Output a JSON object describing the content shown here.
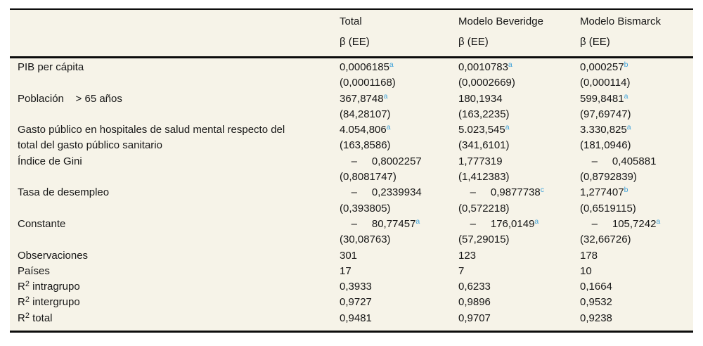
{
  "table": {
    "columns": [
      {
        "title": "Total",
        "subtitle": "β (EE)"
      },
      {
        "title": "Modelo Beveridge",
        "subtitle": "β (EE)"
      },
      {
        "title": "Modelo Bismarck",
        "subtitle": "β (EE)"
      }
    ],
    "vars": [
      {
        "label": "PIB per cápita",
        "cells": [
          {
            "coef": "0,0006185",
            "sup": "a",
            "se": "(0,0001168)"
          },
          {
            "coef": "0,0010783",
            "sup": "a",
            "se": "(0,0002669)"
          },
          {
            "coef": "0,000257",
            "sup": "b",
            "se": "(0,000114)"
          }
        ]
      },
      {
        "label": "Población    > 65 años",
        "cells": [
          {
            "coef": "367,8748",
            "sup": "a",
            "se": "(84,28107)"
          },
          {
            "coef": "180,1934",
            "se": "(163,2235)"
          },
          {
            "coef": "599,8481",
            "sup": "a",
            "se": "(97,69747)"
          }
        ]
      },
      {
        "label": "Gasto público en hospitales de salud mental respecto del",
        "label2": "total del gasto público sanitario",
        "cells": [
          {
            "coef": "4.054,806",
            "sup": "a",
            "se": "(163,8586)"
          },
          {
            "coef": "5.023,545",
            "sup": "a",
            "se": "(341,6101)"
          },
          {
            "coef": "3.330,825",
            "sup": "a",
            "se": "(181,0946)"
          }
        ]
      },
      {
        "label": "Índice de Gini",
        "cells": [
          {
            "coef": "    –     0,8002257",
            "se": "(0,8081747)"
          },
          {
            "coef": "1,777319",
            "se": "(1,412383)"
          },
          {
            "coef": "    –     0,405881",
            "se": "(0,8792839)"
          }
        ]
      },
      {
        "label": "Tasa de desempleo",
        "cells": [
          {
            "coef": "    –     0,2339934",
            "se": "(0,393805)"
          },
          {
            "coef": "    –     0,9877738",
            "sup": "c",
            "se": "(0,572218)"
          },
          {
            "coef": "1,277407",
            "sup": "b",
            "se": "(0,6519115)"
          }
        ]
      },
      {
        "label": "Constante",
        "cells": [
          {
            "coef": "    –     80,77457",
            "sup": "a",
            "se": "(30,08763)"
          },
          {
            "coef": "    –     176,0149",
            "sup": "a",
            "se": "(57,29015)"
          },
          {
            "coef": "    –     105,7242",
            "sup": "a",
            "se": "(32,66726)"
          }
        ]
      }
    ],
    "stats": [
      {
        "label": "Observaciones",
        "values": [
          "301",
          "123",
          "178"
        ]
      },
      {
        "label": "Países",
        "values": [
          "17",
          "7",
          "10"
        ]
      },
      {
        "label": "R",
        "label_sup": "2",
        "label_rest": " intragrupo",
        "values": [
          "0,3933",
          "0,6233",
          "0,1664"
        ]
      },
      {
        "label": "R",
        "label_sup": "2",
        "label_rest": " intergrupo",
        "values": [
          "0,9727",
          "0,9896",
          "0,9532"
        ]
      },
      {
        "label": "R",
        "label_sup": "2",
        "label_rest": " total",
        "values": [
          "0,9481",
          "0,9707",
          "0,9238"
        ]
      }
    ]
  },
  "colors": {
    "superscript_blue": "#3fa2d9",
    "panel_background": "#f6f3e8",
    "rule_black": "#0c0c0c"
  }
}
